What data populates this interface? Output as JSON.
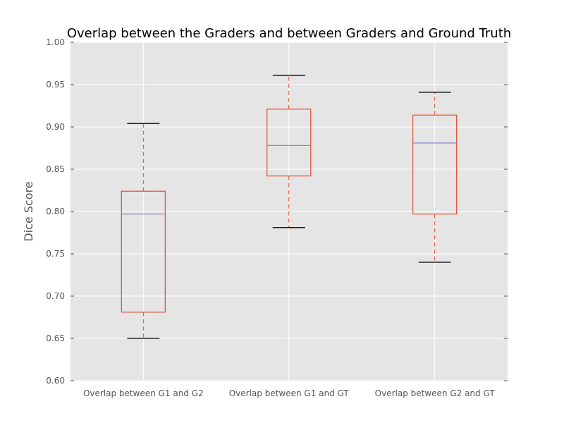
{
  "chart_data": {
    "type": "box",
    "title": "Overlap between the Graders and between Graders and Ground Truth",
    "xlabel": "",
    "ylabel": "Dice Score",
    "ylim": [
      0.6,
      1.0
    ],
    "yticks": [
      "0.60",
      "0.65",
      "0.70",
      "0.75",
      "0.80",
      "0.85",
      "0.90",
      "0.95",
      "1.00"
    ],
    "grid": true,
    "categories": [
      "Overlap between G1 and G2",
      "Overlap between G1 and GT",
      "Overlap between G2 and GT"
    ],
    "boxes": [
      {
        "whisker_low": 0.65,
        "q1": 0.681,
        "median": 0.797,
        "q3": 0.824,
        "whisker_high": 0.904
      },
      {
        "whisker_low": 0.781,
        "q1": 0.842,
        "median": 0.878,
        "q3": 0.921,
        "whisker_high": 0.961
      },
      {
        "whisker_low": 0.74,
        "q1": 0.797,
        "median": 0.881,
        "q3": 0.914,
        "whisker_high": 0.941
      }
    ],
    "colors": {
      "plot_background": "#e5e5e5",
      "grid": "#ffffff",
      "box": "#e24a33",
      "median": "#8c8ac8",
      "cap": "#000000",
      "tick_text": "#555555"
    }
  }
}
